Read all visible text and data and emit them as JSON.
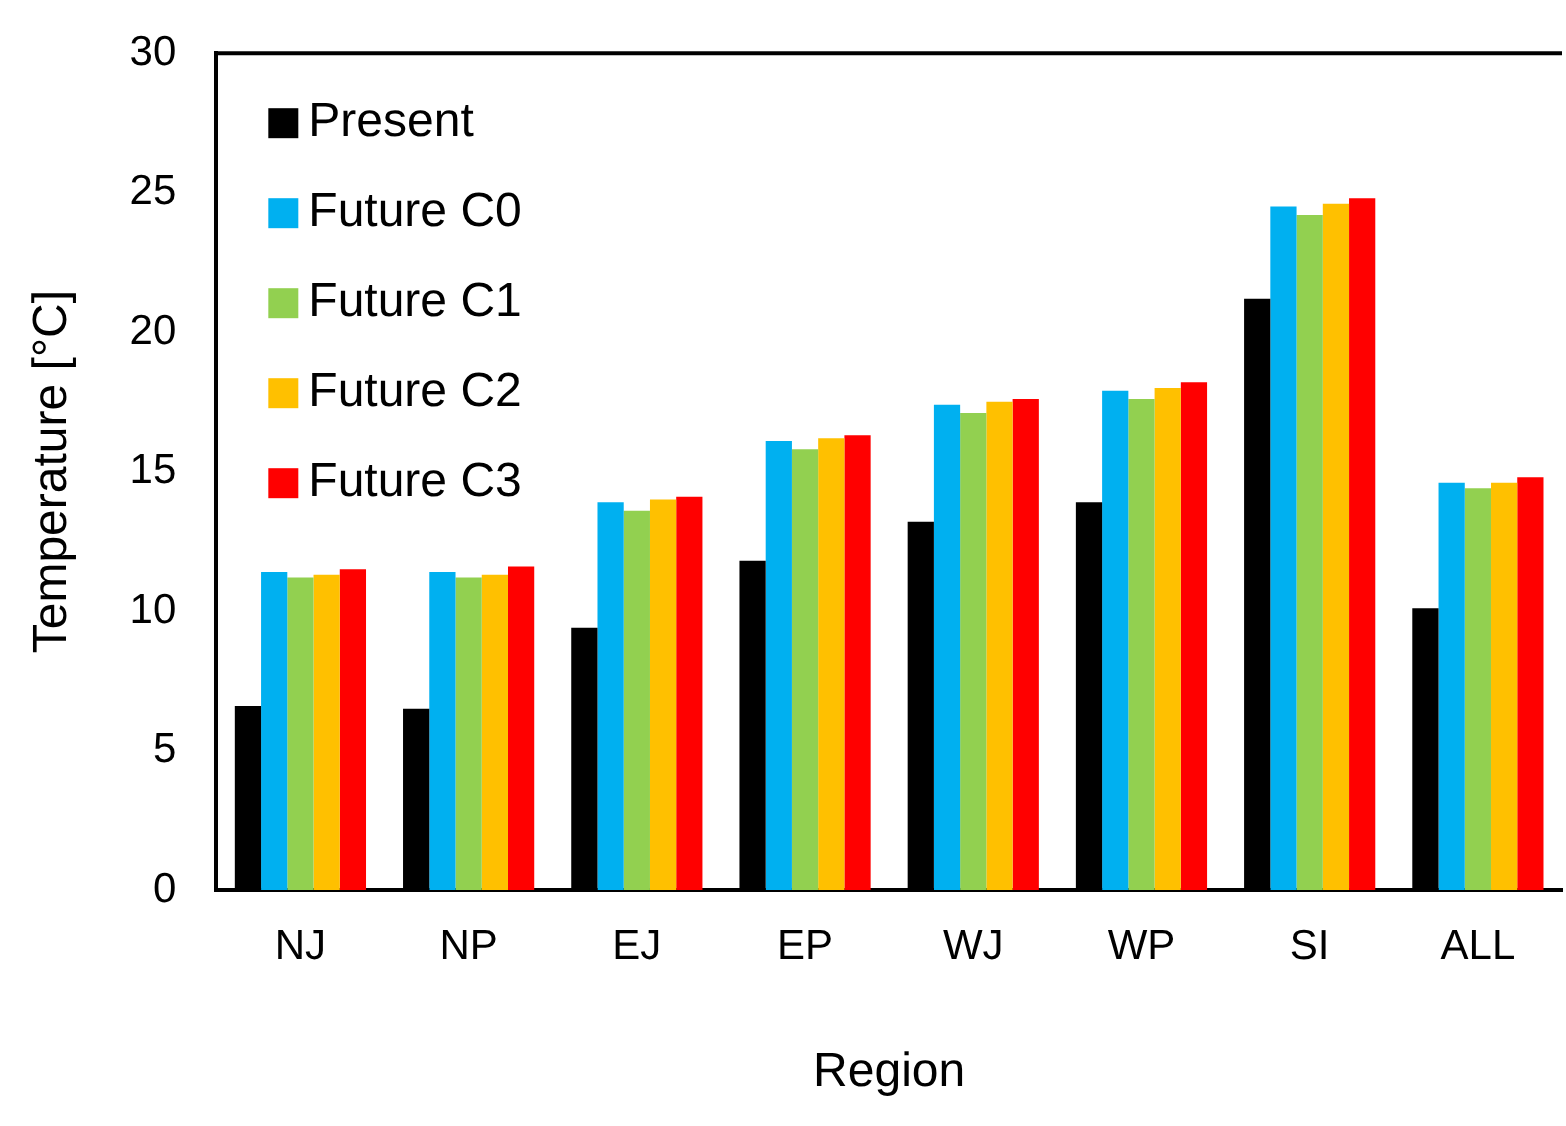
{
  "chart_data": {
    "type": "bar",
    "xlabel": "Region",
    "ylabel": "Temperature [°C]",
    "categories": [
      "NJ",
      "NP",
      "EJ",
      "EP",
      "WJ",
      "WP",
      "SI",
      "ALL"
    ],
    "series": [
      {
        "name": "Present",
        "color": "#000000",
        "values": [
          6.6,
          6.5,
          9.4,
          11.8,
          13.2,
          13.9,
          21.2,
          10.1
        ]
      },
      {
        "name": "Future C0",
        "color": "#00b0f0",
        "values": [
          11.4,
          11.4,
          13.9,
          16.1,
          17.4,
          17.9,
          24.5,
          14.6
        ]
      },
      {
        "name": "Future C1",
        "color": "#92d050",
        "values": [
          11.2,
          11.2,
          13.6,
          15.8,
          17.1,
          17.6,
          24.2,
          14.4
        ]
      },
      {
        "name": "Future C2",
        "color": "#ffc000",
        "values": [
          11.3,
          11.3,
          14.0,
          16.2,
          17.5,
          18.0,
          24.6,
          14.6
        ]
      },
      {
        "name": "Future C3",
        "color": "#ff0000",
        "values": [
          11.5,
          11.6,
          14.1,
          16.3,
          17.6,
          18.2,
          24.8,
          14.8
        ]
      }
    ],
    "ylim": [
      0,
      30
    ],
    "yticks": [
      0,
      5,
      10,
      15,
      20,
      25,
      30
    ],
    "grid": false,
    "legend": "top left"
  }
}
